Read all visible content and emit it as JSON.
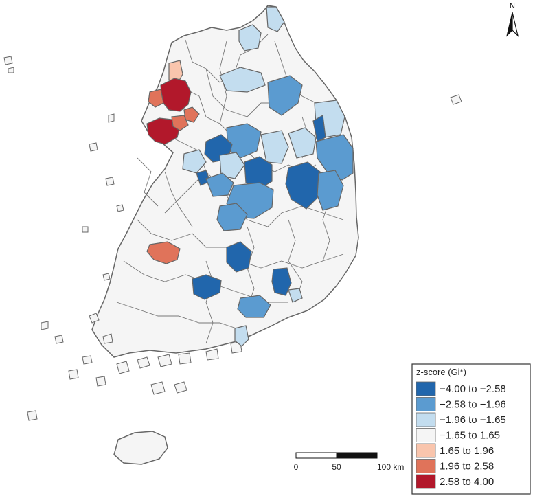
{
  "legend": {
    "title": "z-score (Gi*)",
    "classes": [
      {
        "label": "−4.00 to −2.58",
        "color": "#2166ac"
      },
      {
        "label": "−2.58 to −1.96",
        "color": "#5b9bd0"
      },
      {
        "label": "−1.96 to −1.65",
        "color": "#c3ddef"
      },
      {
        "label": "−1.65 to 1.65",
        "color": "#f5f5f5"
      },
      {
        "label": "1.65 to 1.96",
        "color": "#f9c5ad"
      },
      {
        "label": "1.96 to 2.58",
        "color": "#e0735a"
      },
      {
        "label": "2.58 to 4.00",
        "color": "#b2182b"
      }
    ]
  },
  "scale_bar": {
    "labels": [
      "0",
      "50",
      "100 km"
    ]
  },
  "north_arrow": {
    "label": "N"
  },
  "colors": {
    "boundary": "#666666",
    "background": "#ffffff"
  }
}
